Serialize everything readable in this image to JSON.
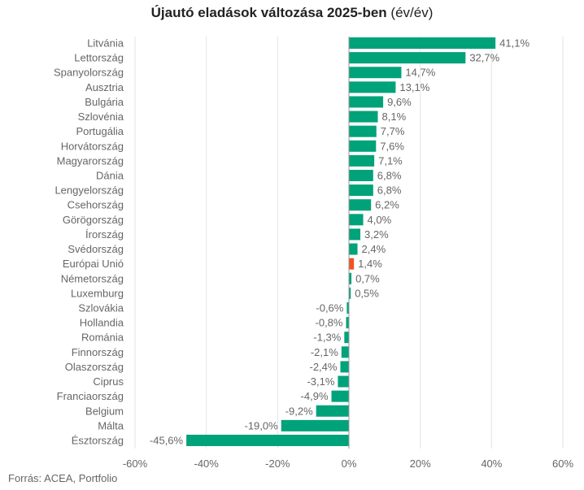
{
  "chart_data": {
    "type": "bar",
    "orientation": "horizontal",
    "title": "Újautó eladások változása 2025-ben",
    "subtitle": "(év/év)",
    "source": "Forrás: ACEA, Portfolio",
    "categories": [
      "Litvánia",
      "Lettország",
      "Spanyolország",
      "Ausztria",
      "Bulgária",
      "Szlovénia",
      "Portugália",
      "Horvátország",
      "Magyarország",
      "Dánia",
      "Lengyelország",
      "Csehország",
      "Görögország",
      "Írország",
      "Svédország",
      "Európai Unió",
      "Németország",
      "Luxemburg",
      "Szlovákia",
      "Hollandia",
      "Románia",
      "Finnország",
      "Olaszország",
      "Ciprus",
      "Franciaország",
      "Belgium",
      "Málta",
      "Észtország"
    ],
    "values": [
      41.1,
      32.7,
      14.7,
      13.1,
      9.6,
      8.1,
      7.7,
      7.6,
      7.1,
      6.8,
      6.8,
      6.2,
      4.0,
      3.2,
      2.4,
      1.4,
      0.7,
      0.5,
      -0.6,
      -0.8,
      -1.3,
      -2.1,
      -2.4,
      -3.1,
      -4.9,
      -9.2,
      -19.0,
      -45.6
    ],
    "data_labels": [
      "41,1%",
      "32,7%",
      "14,7%",
      "13,1%",
      "9,6%",
      "8,1%",
      "7,7%",
      "7,6%",
      "7,1%",
      "6,8%",
      "6,8%",
      "6,2%",
      "4,0%",
      "3,2%",
      "2,4%",
      "1,4%",
      "0,7%",
      "0,5%",
      "-0,6%",
      "-0,8%",
      "-1,3%",
      "-2,1%",
      "-2,4%",
      "-3,1%",
      "-4,9%",
      "-9,2%",
      "-19,0%",
      "-45,6%"
    ],
    "highlight_category": "Európai Unió",
    "xlim": [
      -60,
      60
    ],
    "xticks": [
      -60,
      -40,
      -20,
      0,
      20,
      40,
      60
    ],
    "xtick_labels": [
      "-60%",
      "-40%",
      "-20%",
      "0%",
      "20%",
      "40%",
      "60%"
    ],
    "grid": "vertical",
    "colors": {
      "bar": "#00a27a",
      "highlight": "#f0541e",
      "grid": "#e3e3e3",
      "zero_line": "#999999",
      "label": "#666666"
    }
  }
}
